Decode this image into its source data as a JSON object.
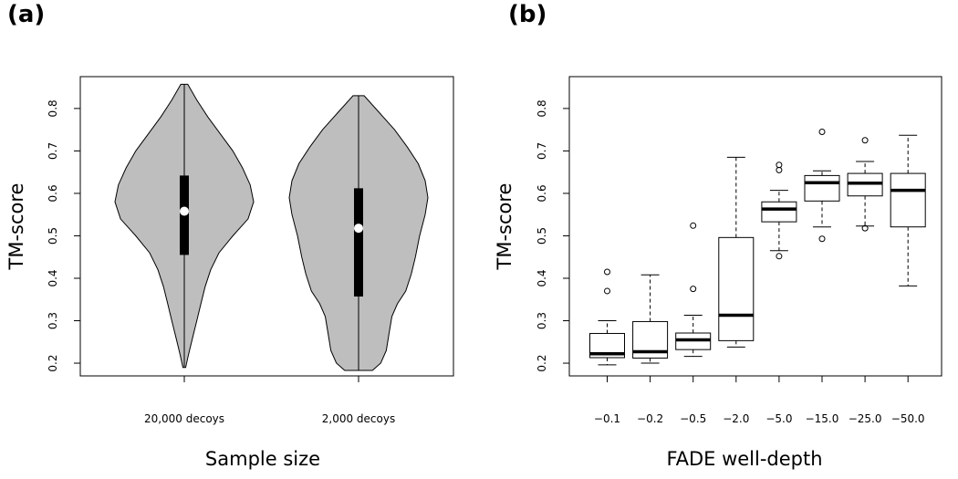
{
  "panels": {
    "a": {
      "label": "(a)"
    },
    "b": {
      "label": "(b)"
    }
  },
  "chart_data": [
    {
      "type": "violin",
      "xlabel": "Sample size",
      "ylabel": "TM-score",
      "ylim": [
        0.17,
        0.875
      ],
      "yticks": [
        "0.2",
        "0.3",
        "0.4",
        "0.5",
        "0.6",
        "0.7",
        "0.8"
      ],
      "categories": [
        "20,000 decoys",
        "2,000 decoys"
      ],
      "grid": false,
      "legend": "none",
      "fill_color": "#bebebe",
      "series": [
        {
          "min": 0.19,
          "q1": 0.455,
          "median": 0.558,
          "q3": 0.642,
          "max": 0.857,
          "density": [
            [
              0.19,
              0.02
            ],
            [
              0.22,
              0.06
            ],
            [
              0.26,
              0.12
            ],
            [
              0.3,
              0.18
            ],
            [
              0.34,
              0.24
            ],
            [
              0.38,
              0.3
            ],
            [
              0.42,
              0.38
            ],
            [
              0.46,
              0.5
            ],
            [
              0.5,
              0.7
            ],
            [
              0.54,
              0.92
            ],
            [
              0.58,
              1.0
            ],
            [
              0.62,
              0.95
            ],
            [
              0.66,
              0.84
            ],
            [
              0.7,
              0.7
            ],
            [
              0.74,
              0.52
            ],
            [
              0.78,
              0.34
            ],
            [
              0.82,
              0.18
            ],
            [
              0.857,
              0.05
            ]
          ]
        },
        {
          "min": 0.183,
          "q1": 0.357,
          "median": 0.518,
          "q3": 0.612,
          "max": 0.83,
          "density": [
            [
              0.183,
              0.2
            ],
            [
              0.2,
              0.32
            ],
            [
              0.23,
              0.4
            ],
            [
              0.27,
              0.44
            ],
            [
              0.31,
              0.48
            ],
            [
              0.34,
              0.56
            ],
            [
              0.37,
              0.68
            ],
            [
              0.41,
              0.76
            ],
            [
              0.45,
              0.82
            ],
            [
              0.5,
              0.88
            ],
            [
              0.55,
              0.96
            ],
            [
              0.59,
              1.0
            ],
            [
              0.63,
              0.96
            ],
            [
              0.67,
              0.86
            ],
            [
              0.71,
              0.7
            ],
            [
              0.75,
              0.52
            ],
            [
              0.79,
              0.3
            ],
            [
              0.83,
              0.08
            ]
          ]
        }
      ]
    },
    {
      "type": "box",
      "xlabel": "FADE well-depth",
      "ylabel": "TM-score",
      "ylim": [
        0.17,
        0.875
      ],
      "yticks": [
        "0.2",
        "0.3",
        "0.4",
        "0.5",
        "0.6",
        "0.7",
        "0.8"
      ],
      "categories": [
        "−0.1",
        "−0.2",
        "−0.5",
        "−2.0",
        "−5.0",
        "−15.0",
        "−25.0",
        "−50.0"
      ],
      "grid": false,
      "legend": "none",
      "boxes": [
        {
          "whisker_low": 0.196,
          "q1": 0.213,
          "median": 0.222,
          "q3": 0.27,
          "whisker_high": 0.3,
          "outliers": [
            0.37,
            0.415
          ]
        },
        {
          "whisker_low": 0.2,
          "q1": 0.212,
          "median": 0.227,
          "q3": 0.298,
          "whisker_high": 0.408,
          "outliers": []
        },
        {
          "whisker_low": 0.216,
          "q1": 0.232,
          "median": 0.255,
          "q3": 0.271,
          "whisker_high": 0.313,
          "outliers": [
            0.375,
            0.524
          ]
        },
        {
          "whisker_low": 0.238,
          "q1": 0.253,
          "median": 0.313,
          "q3": 0.496,
          "whisker_high": 0.685,
          "outliers": []
        },
        {
          "whisker_low": 0.465,
          "q1": 0.533,
          "median": 0.563,
          "q3": 0.58,
          "whisker_high": 0.607,
          "outliers": [
            0.452,
            0.655,
            0.667
          ]
        },
        {
          "whisker_low": 0.521,
          "q1": 0.582,
          "median": 0.625,
          "q3": 0.642,
          "whisker_high": 0.653,
          "outliers": [
            0.493,
            0.745
          ]
        },
        {
          "whisker_low": 0.523,
          "q1": 0.594,
          "median": 0.624,
          "q3": 0.647,
          "whisker_high": 0.675,
          "outliers": [
            0.518,
            0.725
          ]
        },
        {
          "whisker_low": 0.382,
          "q1": 0.521,
          "median": 0.607,
          "q3": 0.647,
          "whisker_high": 0.737,
          "outliers": []
        }
      ]
    }
  ]
}
